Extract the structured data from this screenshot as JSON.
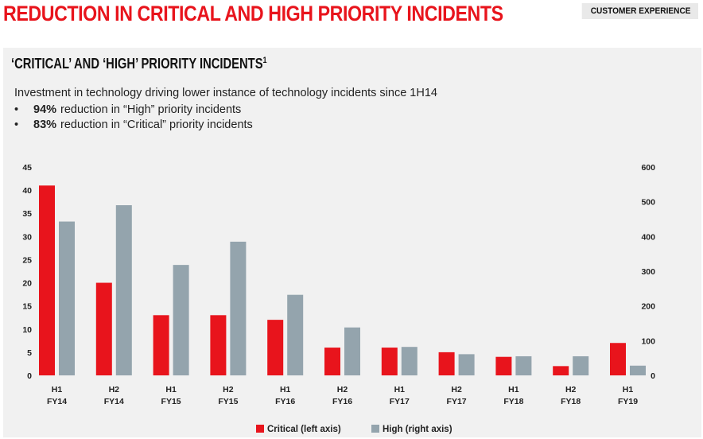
{
  "header": {
    "title": "REDUCTION IN CRITICAL AND HIGH PRIORITY INCIDENTS",
    "section": "CUSTOMER EXPERIENCE"
  },
  "panel": {
    "title": "‘CRITICAL’ AND ‘HIGH’ PRIORITY INCIDENTS",
    "footnote_mark": "1",
    "intro": "Investment in technology driving lower instance of technology incidents since 1H14",
    "bullets": [
      {
        "bullet": "•",
        "value": "94%",
        "text": "reduction in “High” priority incidents"
      },
      {
        "bullet": "•",
        "value": "83%",
        "text": "reduction in “Critical” priority incidents"
      }
    ]
  },
  "colors": {
    "critical": "#e8141c",
    "high": "#94a4ad",
    "title_red": "#e8141c"
  },
  "chart_data": {
    "type": "bar",
    "categories": [
      [
        "H1",
        "FY14"
      ],
      [
        "H2",
        "FY14"
      ],
      [
        "H1",
        "FY15"
      ],
      [
        "H2",
        "FY15"
      ],
      [
        "H1",
        "FY16"
      ],
      [
        "H2",
        "FY16"
      ],
      [
        "H1",
        "FY17"
      ],
      [
        "H2",
        "FY17"
      ],
      [
        "H1",
        "FY18"
      ],
      [
        "H2",
        "FY18"
      ],
      [
        "H1",
        "FY19"
      ]
    ],
    "series": [
      {
        "name": "Critical (left axis)",
        "axis": "left",
        "values": [
          41,
          20,
          13,
          13,
          12,
          6,
          6,
          5,
          4,
          2,
          7
        ]
      },
      {
        "name": "High (right axis)",
        "axis": "right",
        "values": [
          443,
          490,
          318,
          385,
          232,
          138,
          82,
          61,
          55,
          55,
          28
        ]
      }
    ],
    "left_axis": {
      "min": 0,
      "max": 45,
      "ticks": [
        0,
        5,
        10,
        15,
        20,
        25,
        30,
        35,
        40,
        45
      ]
    },
    "right_axis": {
      "min": 0,
      "max": 600,
      "ticks": [
        0,
        100,
        200,
        300,
        400,
        500,
        600
      ]
    },
    "legend": "bottom-center",
    "grid": false
  }
}
